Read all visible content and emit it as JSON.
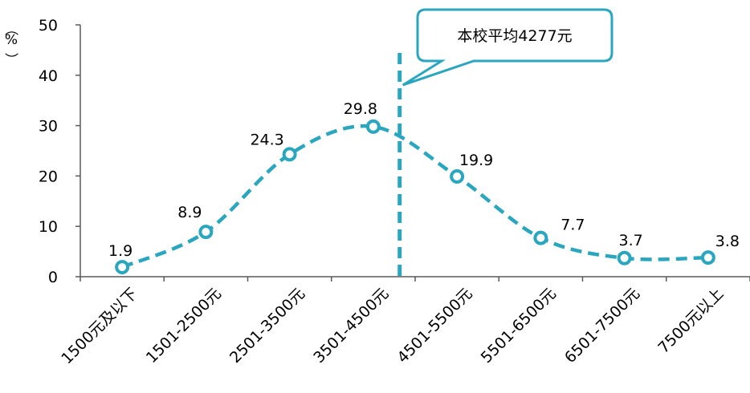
{
  "colors": {
    "series": "#2BA6BF",
    "axis": "#595959",
    "callout_border": "#2BA6BF",
    "text": "#000000"
  },
  "y_axis_unit": [
    "%",
    "（",
    "）"
  ],
  "callout": {
    "text": "本校平均4277元",
    "marker_x_value": 4277
  },
  "chart_data": {
    "type": "line",
    "title": "",
    "xlabel": "",
    "ylabel": "%",
    "ylim": [
      0,
      50
    ],
    "yticks": [
      0,
      10,
      20,
      30,
      40,
      50
    ],
    "grid": false,
    "categories": [
      "1500元及以下",
      "1501-2500元",
      "2501-3500元",
      "3501-4500元",
      "4501-5500元",
      "5501-6500元",
      "6501-7500元",
      "7500元以上"
    ],
    "series": [
      {
        "values": [
          1.9,
          8.9,
          24.3,
          29.8,
          19.9,
          7.7,
          3.7,
          3.8
        ],
        "labels": [
          "1.9",
          "8.9",
          "24.3",
          "29.8",
          "19.9",
          "7.7",
          "3.7",
          "3.8"
        ],
        "style": "dashed-smooth-with-open-circle-markers"
      }
    ]
  }
}
